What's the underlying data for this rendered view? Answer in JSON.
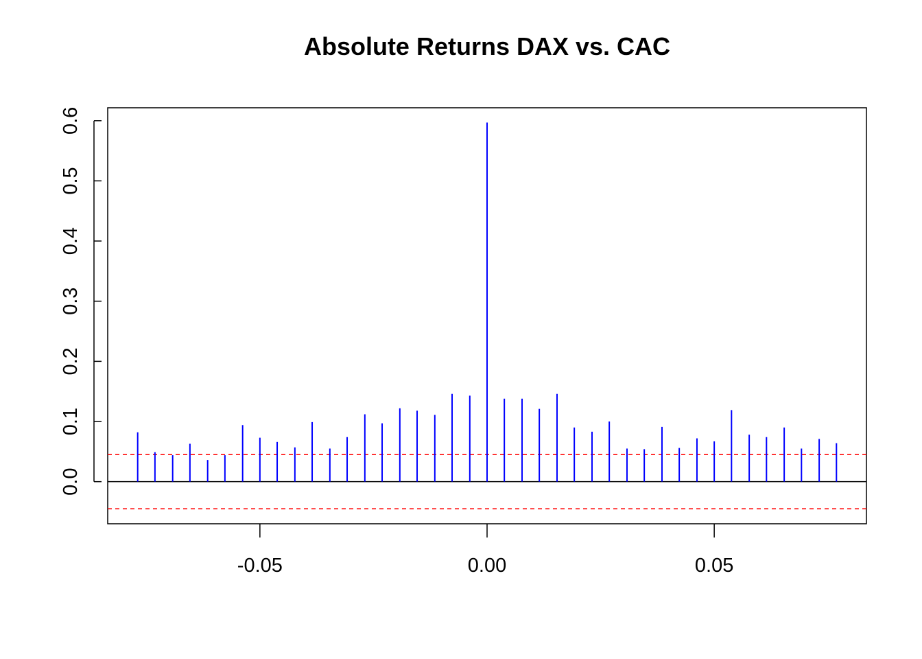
{
  "chart_data": {
    "type": "bar",
    "title": "Absolute Returns DAX vs. CAC",
    "xlabel": "",
    "ylabel": "",
    "xlim": [
      -0.0835,
      0.0835
    ],
    "ylim": [
      -0.07,
      0.6215
    ],
    "x_ticks": [
      {
        "value": -0.05,
        "label": "-0.05"
      },
      {
        "value": 0.0,
        "label": "0.00"
      },
      {
        "value": 0.05,
        "label": "0.05"
      }
    ],
    "y_ticks": [
      {
        "value": 0.0,
        "label": "0.0"
      },
      {
        "value": 0.1,
        "label": "0.1"
      },
      {
        "value": 0.2,
        "label": "0.2"
      },
      {
        "value": 0.3,
        "label": "0.3"
      },
      {
        "value": 0.4,
        "label": "0.4"
      },
      {
        "value": 0.5,
        "label": "0.5"
      },
      {
        "value": 0.6,
        "label": "0.6"
      }
    ],
    "x": [
      -0.0769,
      -0.0731,
      -0.0692,
      -0.0654,
      -0.0615,
      -0.0577,
      -0.0538,
      -0.05,
      -0.0462,
      -0.0423,
      -0.0385,
      -0.0346,
      -0.0308,
      -0.0269,
      -0.0231,
      -0.0192,
      -0.0154,
      -0.0115,
      -0.0077,
      -0.0038,
      0.0,
      0.0038,
      0.0077,
      0.0115,
      0.0154,
      0.0192,
      0.0231,
      0.0269,
      0.0308,
      0.0346,
      0.0385,
      0.0423,
      0.0462,
      0.05,
      0.0538,
      0.0577,
      0.0615,
      0.0654,
      0.0692,
      0.0731,
      0.0769
    ],
    "values": [
      0.082,
      0.049,
      0.044,
      0.063,
      0.036,
      0.044,
      0.094,
      0.073,
      0.066,
      0.057,
      0.099,
      0.055,
      0.074,
      0.112,
      0.097,
      0.122,
      0.118,
      0.111,
      0.146,
      0.143,
      0.597,
      0.138,
      0.138,
      0.121,
      0.146,
      0.09,
      0.083,
      0.1,
      0.055,
      0.054,
      0.091,
      0.056,
      0.072,
      0.067,
      0.119,
      0.078,
      0.074,
      0.09,
      0.055,
      0.071,
      0.064
    ],
    "confidence_bounds": [
      0.045,
      -0.045
    ],
    "grid": false,
    "colors": {
      "bars": "#0000ff",
      "bounds": "#ff0000",
      "zero_line": "#000000",
      "axes": "#000000"
    }
  }
}
